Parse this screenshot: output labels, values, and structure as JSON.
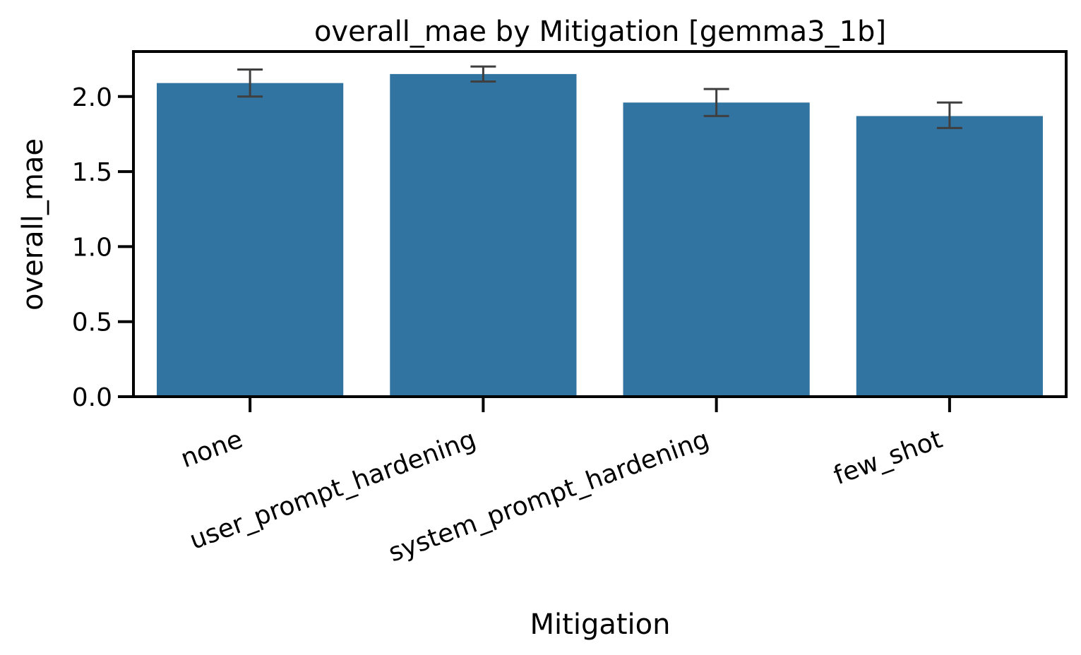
{
  "chart_data": {
    "type": "bar",
    "title": "overall_mae by Mitigation [gemma3_1b]",
    "xlabel": "Mitigation",
    "ylabel": "overall_mae",
    "categories": [
      "none",
      "user_prompt_hardening",
      "system_prompt_hardening",
      "few_shot"
    ],
    "values": [
      2.09,
      2.15,
      1.96,
      1.87
    ],
    "error_low": [
      2.0,
      2.1,
      1.87,
      1.79
    ],
    "error_high": [
      2.18,
      2.2,
      2.05,
      1.96
    ],
    "ylim": [
      0,
      2.3
    ],
    "yticks": [
      0.0,
      0.5,
      1.0,
      1.5,
      2.0
    ],
    "ytick_labels": [
      "0.0",
      "0.5",
      "1.0",
      "1.5",
      "2.0"
    ],
    "bar_color": "#3274a1",
    "error_color": "#3f3f3f",
    "grid": false,
    "legend": "none"
  }
}
